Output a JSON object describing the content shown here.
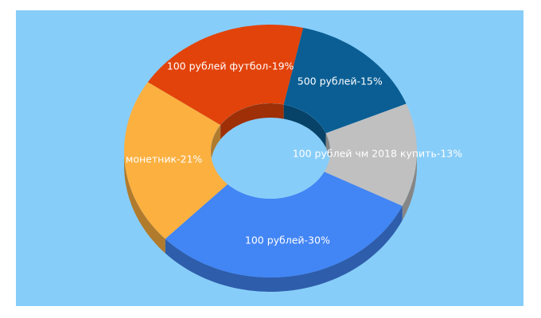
{
  "chart_data": {
    "type": "donut3d",
    "values": [
      13,
      30,
      21,
      19,
      15
    ],
    "value_labels": [
      "100 рублей чм 2018 купить-13%",
      "100 рублей-30%",
      "монетник-21%",
      "100 рублей футбол-19%",
      "500 рублей-15%"
    ],
    "colors": [
      "#c0c0c0",
      "#4285f4",
      "#fbb040",
      "#e2430a",
      "#0a5e94"
    ],
    "background": "#87cdf9"
  }
}
